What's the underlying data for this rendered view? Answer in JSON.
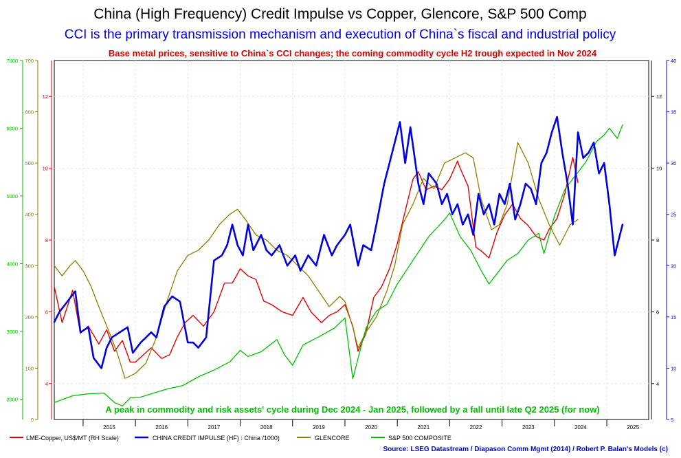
{
  "chart_data": {
    "type": "line",
    "title": "China (High Frequency) Credit Impulse vs Copper, Glencore, S&P 500 Comp",
    "subtitle": "CCI is the primary transmission mechanism and execution of China`s fiscal and industrial policy",
    "annotation_top": "Base metal prices, sensitive to China`s CCI changes; the coming commodity cycle H2 trough expected in Nov 2024",
    "annotation_bottom": "A peak in commodity and risk assets' cycle during Dec 2024 - Jan 2025, followed by a fall until late Q2 2025 (for now)",
    "source": "Source: LSEG Datastream / Diapason Comm Mgmt (2014) / Robert P. Balan's Models (c)",
    "x_ticks": [
      "2015",
      "2016",
      "2017",
      "2018",
      "2019",
      "2020",
      "2021",
      "2022",
      "2023",
      "2024",
      "2025"
    ],
    "xlim": [
      2014.45,
      2025.8
    ],
    "axes": {
      "sp500": {
        "label": "S&P 500 COMPOSITE",
        "color": "#00c000",
        "ylim": [
          1700,
          7000
        ],
        "ticks": [
          "2000",
          "3000",
          "4000",
          "5000",
          "6000",
          "7000"
        ]
      },
      "glencore": {
        "label": "GLENCORE",
        "color": "#8b8000",
        "ylim": [
          0,
          700
        ],
        "ticks": [
          "0",
          "100",
          "200",
          "300",
          "400",
          "500",
          "600",
          "700"
        ]
      },
      "copper": {
        "label": "LME-Copper, US$/MT (RH Scale)",
        "color": "#e00000",
        "ylim": [
          3,
          13
        ],
        "ticks": [
          "4",
          "6",
          "8",
          "10",
          "12"
        ]
      },
      "cci": {
        "label": "CHINA CREDIT IMPULSE (HF) : China /1000)",
        "color": "#0000e0",
        "ylim": [
          5,
          40
        ],
        "ticks": [
          "5",
          "10",
          "15",
          "20",
          "25",
          "30",
          "35",
          "40"
        ]
      },
      "copper_right": {
        "ticks": [
          "4",
          "6",
          "8",
          "10",
          "12"
        ]
      }
    },
    "series": [
      {
        "name": "LME-Copper, US$/MT (RH Scale)",
        "axis": "copper",
        "color": "#e00000",
        "width": 1.4,
        "x": [
          2014.45,
          2014.6,
          2014.8,
          2014.95,
          2015.1,
          2015.3,
          2015.45,
          2015.6,
          2015.75,
          2015.9,
          2016.0,
          2016.15,
          2016.3,
          2016.5,
          2016.65,
          2016.8,
          2016.95,
          2017.1,
          2017.3,
          2017.5,
          2017.7,
          2017.85,
          2018.0,
          2018.15,
          2018.3,
          2018.45,
          2018.6,
          2018.8,
          2019.0,
          2019.2,
          2019.35,
          2019.55,
          2019.7,
          2019.85,
          2020.0,
          2020.15,
          2020.25,
          2020.4,
          2020.55,
          2020.7,
          2020.85,
          2021.0,
          2021.15,
          2021.3,
          2021.4,
          2021.55,
          2021.7,
          2021.85,
          2022.0,
          2022.15,
          2022.2,
          2022.35,
          2022.5,
          2022.6,
          2022.75,
          2022.9,
          2023.05,
          2023.2,
          2023.35,
          2023.5,
          2023.65,
          2023.8,
          2023.9,
          2024.05,
          2024.2,
          2024.35,
          2024.45
        ],
        "values": [
          6.7,
          5.7,
          6.6,
          5.4,
          5.6,
          5.1,
          5.5,
          4.9,
          5.2,
          4.6,
          4.6,
          4.8,
          5.0,
          4.7,
          4.8,
          5.3,
          5.7,
          5.9,
          5.6,
          6.0,
          6.8,
          6.8,
          7.2,
          7.0,
          6.9,
          6.3,
          6.2,
          6.0,
          5.9,
          6.4,
          6.0,
          5.7,
          5.9,
          6.0,
          6.2,
          5.6,
          4.9,
          5.4,
          6.4,
          6.7,
          7.2,
          7.9,
          8.8,
          9.7,
          9.9,
          9.4,
          9.5,
          9.4,
          9.7,
          10.2,
          10.0,
          9.5,
          7.8,
          7.7,
          7.5,
          8.2,
          8.7,
          9.0,
          8.6,
          8.4,
          8.1,
          8.0,
          8.3,
          8.6,
          9.3,
          10.3,
          9.6
        ]
      },
      {
        "name": "GLENCORE",
        "axis": "glencore",
        "color": "#8b8000",
        "width": 1.3,
        "x": [
          2014.45,
          2014.6,
          2014.75,
          2014.85,
          2015.0,
          2015.15,
          2015.3,
          2015.5,
          2015.65,
          2015.8,
          2016.0,
          2016.2,
          2016.4,
          2016.6,
          2016.8,
          2017.0,
          2017.2,
          2017.4,
          2017.6,
          2017.8,
          2017.95,
          2018.1,
          2018.3,
          2018.5,
          2018.7,
          2018.9,
          2019.1,
          2019.3,
          2019.5,
          2019.7,
          2019.9,
          2020.0,
          2020.15,
          2020.25,
          2020.4,
          2020.6,
          2020.8,
          2020.95,
          2021.1,
          2021.3,
          2021.5,
          2021.7,
          2021.9,
          2022.1,
          2022.3,
          2022.45,
          2022.6,
          2022.8,
          2022.95,
          2023.1,
          2023.3,
          2023.5,
          2023.7,
          2023.9,
          2024.1,
          2024.3,
          2024.45
        ],
        "values": [
          300,
          280,
          300,
          310,
          290,
          260,
          220,
          170,
          130,
          80,
          90,
          110,
          160,
          230,
          290,
          320,
          330,
          350,
          380,
          400,
          410,
          390,
          360,
          350,
          330,
          320,
          300,
          280,
          250,
          220,
          240,
          230,
          180,
          140,
          170,
          200,
          250,
          300,
          380,
          420,
          470,
          450,
          500,
          510,
          520,
          510,
          430,
          370,
          380,
          420,
          540,
          500,
          430,
          380,
          340,
          380,
          390
        ]
      },
      {
        "name": "S&P 500 COMPOSITE",
        "axis": "sp500",
        "color": "#00c000",
        "width": 1.3,
        "x": [
          2014.45,
          2014.8,
          2015.1,
          2015.4,
          2015.6,
          2015.75,
          2015.9,
          2016.1,
          2016.3,
          2016.6,
          2016.9,
          2017.2,
          2017.5,
          2017.8,
          2018.0,
          2018.15,
          2018.4,
          2018.7,
          2018.85,
          2019.0,
          2019.2,
          2019.5,
          2019.8,
          2020.0,
          2020.15,
          2020.25,
          2020.4,
          2020.6,
          2020.8,
          2021.0,
          2021.3,
          2021.6,
          2021.9,
          2022.0,
          2022.2,
          2022.4,
          2022.6,
          2022.75,
          2022.9,
          2023.1,
          2023.3,
          2023.5,
          2023.7,
          2023.8,
          2024.0,
          2024.2,
          2024.4,
          2024.6,
          2024.8,
          2024.95,
          2025.05,
          2025.2,
          2025.3
        ],
        "values": [
          1950,
          2050,
          2080,
          2090,
          1950,
          1900,
          2020,
          2030,
          2080,
          2150,
          2200,
          2330,
          2430,
          2550,
          2720,
          2630,
          2700,
          2880,
          2650,
          2500,
          2800,
          2920,
          3050,
          3200,
          2300,
          2600,
          3050,
          3300,
          3400,
          3700,
          4050,
          4400,
          4650,
          4750,
          4400,
          4200,
          3900,
          3700,
          3850,
          4050,
          4150,
          4350,
          4450,
          4150,
          4700,
          5100,
          5300,
          5500,
          5800,
          5900,
          6000,
          5850,
          6050
        ]
      },
      {
        "name": "CHINA CREDIT IMPULSE (HF) : China /1000)",
        "axis": "cci",
        "color": "#0000e0",
        "width": 2.6,
        "x": [
          2014.45,
          2014.55,
          2014.7,
          2014.85,
          2014.95,
          2015.1,
          2015.2,
          2015.35,
          2015.45,
          2015.55,
          2015.7,
          2015.85,
          2015.95,
          2016.1,
          2016.2,
          2016.3,
          2016.4,
          2016.55,
          2016.7,
          2016.85,
          2017.0,
          2017.1,
          2017.2,
          2017.35,
          2017.5,
          2017.65,
          2017.75,
          2017.85,
          2017.95,
          2018.05,
          2018.15,
          2018.25,
          2018.4,
          2018.5,
          2018.6,
          2018.75,
          2018.9,
          2019.05,
          2019.15,
          2019.3,
          2019.45,
          2019.6,
          2019.75,
          2019.85,
          2020.0,
          2020.1,
          2020.25,
          2020.35,
          2020.5,
          2020.6,
          2020.75,
          2020.85,
          2020.95,
          2021.05,
          2021.15,
          2021.25,
          2021.4,
          2021.5,
          2021.6,
          2021.75,
          2021.85,
          2021.95,
          2022.05,
          2022.15,
          2022.25,
          2022.35,
          2022.45,
          2022.55,
          2022.65,
          2022.75,
          2022.85,
          2022.95,
          2023.05,
          2023.15,
          2023.25,
          2023.35,
          2023.45,
          2023.55,
          2023.65,
          2023.75,
          2023.85,
          2023.95,
          2024.05,
          2024.15,
          2024.25,
          2024.35,
          2024.45,
          2024.55,
          2024.65,
          2024.75,
          2024.85,
          2024.95,
          2025.05,
          2025.15,
          2025.25,
          2025.3
        ],
        "values": [
          14.5,
          15.5,
          16.5,
          17.5,
          13.5,
          14.0,
          11.0,
          10.0,
          12.0,
          13.0,
          13.5,
          14.0,
          11.5,
          12.5,
          13.0,
          13.5,
          13.0,
          16.0,
          17.0,
          16.5,
          12.5,
          12.5,
          12.0,
          13.0,
          20.5,
          21.0,
          22.0,
          24.0,
          22.0,
          21.0,
          24.0,
          21.5,
          23.0,
          21.5,
          21.0,
          22.0,
          20.0,
          21.0,
          19.5,
          21.0,
          20.0,
          23.0,
          21.0,
          22.0,
          23.0,
          24.0,
          20.0,
          22.0,
          21.5,
          24.0,
          28.0,
          30.0,
          32.0,
          34.0,
          30.0,
          33.5,
          28.0,
          26.0,
          29.0,
          28.0,
          26.0,
          27.0,
          25.0,
          26.0,
          24.0,
          25.0,
          23.0,
          27.0,
          25.0,
          26.0,
          24.0,
          27.0,
          26.0,
          28.0,
          24.5,
          26.0,
          28.0,
          27.5,
          26.0,
          30.0,
          31.0,
          33.0,
          34.5,
          31.0,
          28.0,
          24.0,
          33.0,
          30.5,
          31.0,
          32.0,
          29.0,
          30.0,
          26.0,
          21.0,
          23.0,
          24.0
        ]
      }
    ]
  }
}
